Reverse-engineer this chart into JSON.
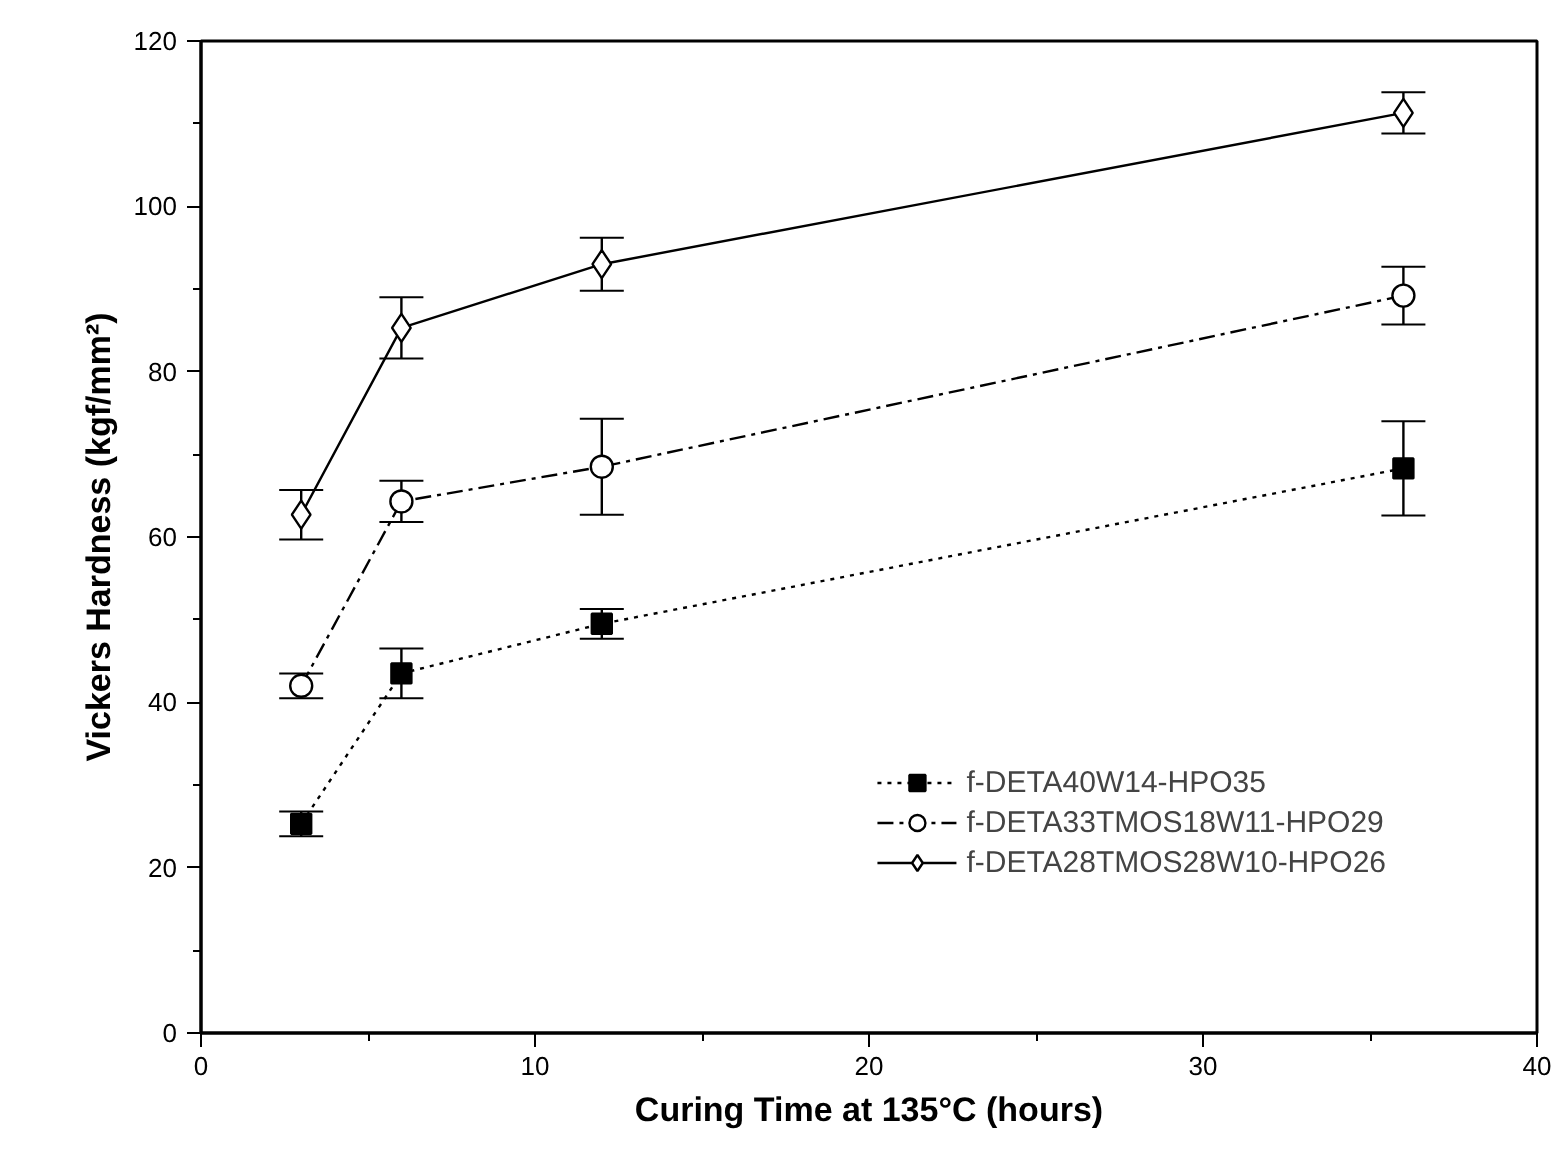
{
  "chart_data": {
    "type": "line",
    "xlabel": "Curing Time at 135°C (hours)",
    "ylabel": "Vickers Hardness (kgf/mm²)",
    "x": [
      3,
      6,
      12,
      36
    ],
    "xlim": [
      0,
      40
    ],
    "xticks": [
      0,
      10,
      20,
      30,
      40
    ],
    "ylim": [
      0,
      120
    ],
    "yticks": [
      0,
      20,
      40,
      60,
      80,
      100,
      120
    ],
    "grid": false,
    "legend": "bottom right",
    "series": [
      {
        "name": "f-DETA40W14-HPO35",
        "color": "#000000",
        "values": [
          25.3,
          43.5,
          49.5,
          68.3
        ],
        "errors": [
          1.5,
          3,
          1.8,
          5.7
        ],
        "marker": "square",
        "line_style": "dotted"
      },
      {
        "name": "f-DETA33TMOS18W11-HPO29",
        "color": "#000000",
        "values": [
          42,
          64.3,
          68.5,
          89.2
        ],
        "errors": [
          1.5,
          2.5,
          5.8,
          3.5
        ],
        "marker": "circle",
        "line_style": "dashed"
      },
      {
        "name": "f-DETA28TMOS28W10-HPO26",
        "color": "#000000",
        "values": [
          62.7,
          85.3,
          93,
          111.3
        ],
        "errors": [
          3,
          3.7,
          3.2,
          2.5
        ],
        "marker": "diamond",
        "line_style": "solid"
      }
    ]
  }
}
